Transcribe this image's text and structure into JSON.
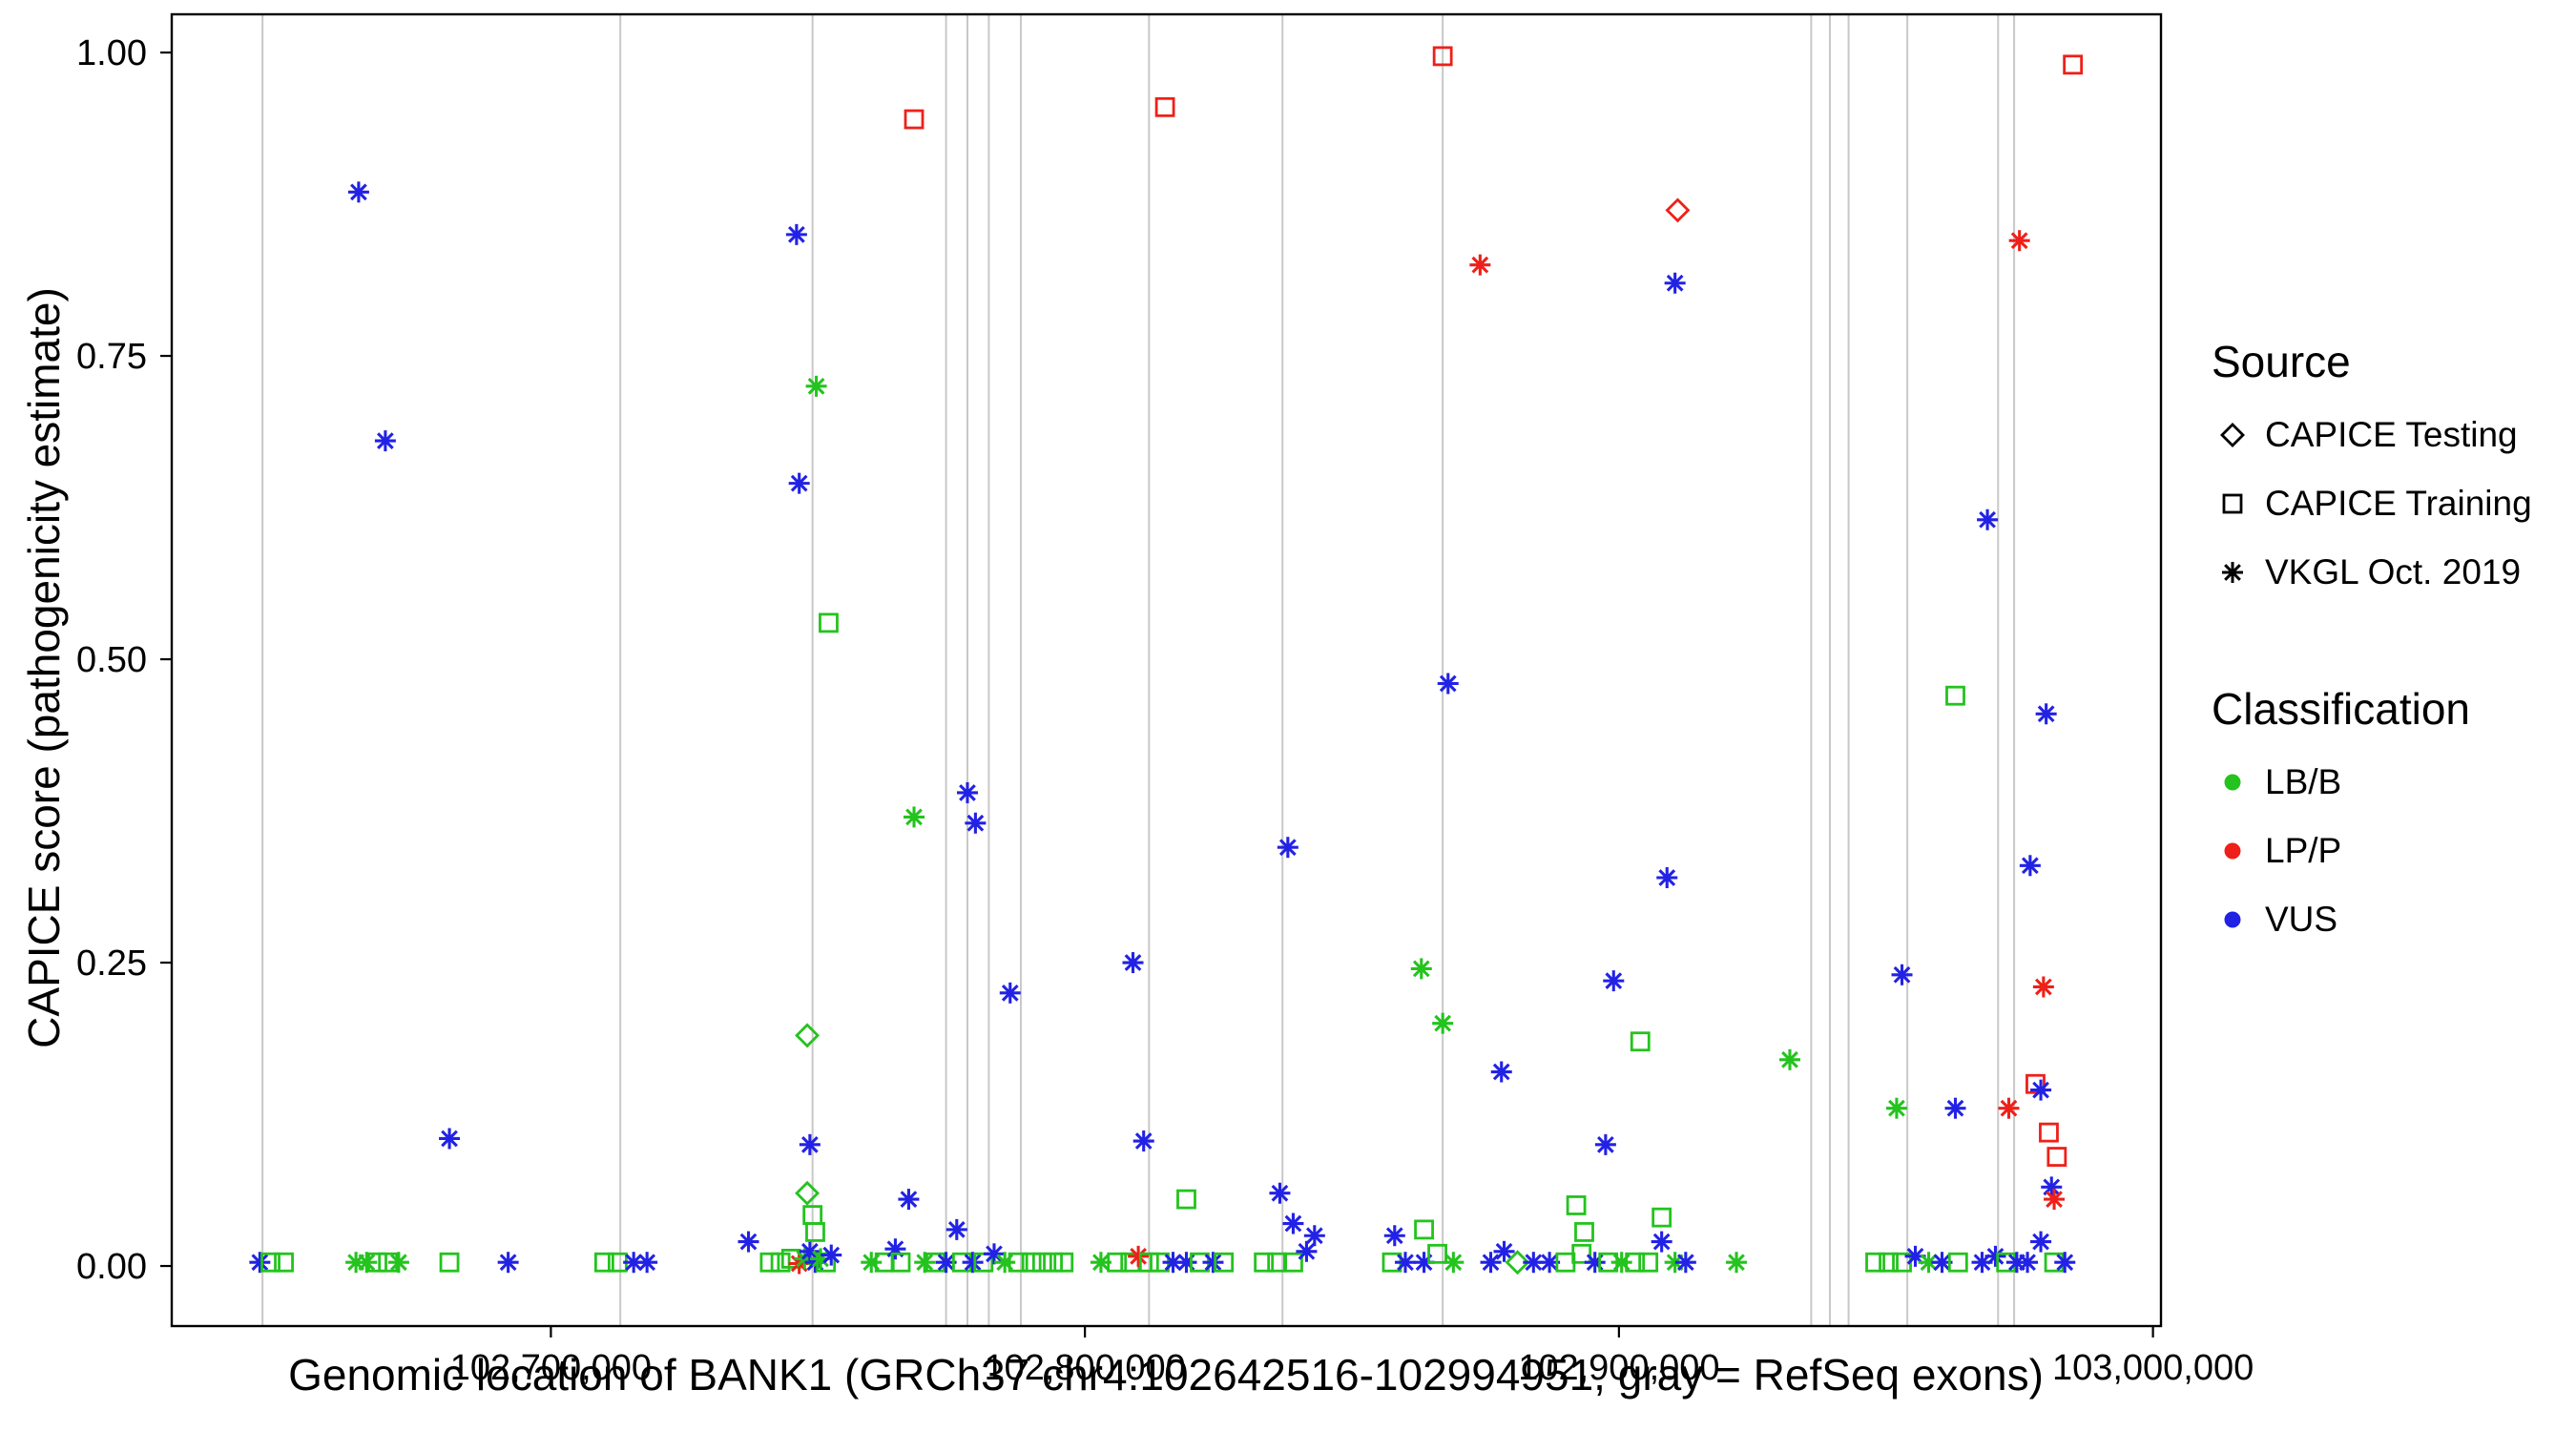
{
  "chart_data": {
    "type": "scatter",
    "title": "",
    "xlabel": "Genomic location of BANK1 (GRCh37 chr4:102642516-102994951, gray = RefSeq exons)",
    "ylabel": "CAPICE score (pathogenicity estimate)",
    "xlim": [
      102629000,
      103001500
    ],
    "ylim": [
      -0.0495,
      1.0315
    ],
    "grid": "off",
    "x_ticks": [
      {
        "v": 102700000,
        "label": "102,700,000"
      },
      {
        "v": 102800000,
        "label": "102,800,000"
      },
      {
        "v": 102900000,
        "label": "102,900,000"
      },
      {
        "v": 103000000,
        "label": "103,000,000"
      }
    ],
    "y_ticks": [
      {
        "v": 0.0,
        "label": "0.00"
      },
      {
        "v": 0.25,
        "label": "0.25"
      },
      {
        "v": 0.5,
        "label": "0.50"
      },
      {
        "v": 0.75,
        "label": "0.75"
      },
      {
        "v": 1.0,
        "label": "1.00"
      }
    ],
    "exon_line_color": "#c8c8c8",
    "exon_lines": [
      102646000,
      102713000,
      102749000,
      102774000,
      102778000,
      102782000,
      102788000,
      102812000,
      102837000,
      102867000,
      102936000,
      102939500,
      102943000,
      102954000,
      102971000,
      102974000
    ],
    "class_colors": {
      "LB/B": "#24c31e",
      "LP/P": "#ee2019",
      "VUS": "#2222e5"
    },
    "source_markers": {
      "testing": "diamond",
      "training": "square",
      "vkgl": "asterisk"
    },
    "points": [
      [
        102645500,
        0.003,
        "vkgl",
        "VUS"
      ],
      [
        102647500,
        0.003,
        "training",
        "LB/B"
      ],
      [
        102650000,
        0.003,
        "training",
        "LB/B"
      ],
      [
        102663500,
        0.003,
        "vkgl",
        "LB/B"
      ],
      [
        102664000,
        0.885,
        "vkgl",
        "VUS"
      ],
      [
        102665500,
        0.003,
        "vkgl",
        "LB/B"
      ],
      [
        102667500,
        0.003,
        "training",
        "LB/B"
      ],
      [
        102669000,
        0.68,
        "vkgl",
        "VUS"
      ],
      [
        102669500,
        0.003,
        "training",
        "LB/B"
      ],
      [
        102671500,
        0.003,
        "vkgl",
        "LB/B"
      ],
      [
        102681000,
        0.105,
        "vkgl",
        "VUS"
      ],
      [
        102681000,
        0.003,
        "training",
        "LB/B"
      ],
      [
        102692000,
        0.003,
        "vkgl",
        "VUS"
      ],
      [
        102710000,
        0.003,
        "training",
        "LB/B"
      ],
      [
        102712500,
        0.003,
        "training",
        "LB/B"
      ],
      [
        102715500,
        0.003,
        "vkgl",
        "VUS"
      ],
      [
        102718000,
        0.003,
        "vkgl",
        "VUS"
      ],
      [
        102737000,
        0.02,
        "vkgl",
        "VUS"
      ],
      [
        102741000,
        0.003,
        "training",
        "LB/B"
      ],
      [
        102743000,
        0.003,
        "training",
        "LB/B"
      ],
      [
        102745000,
        0.006,
        "training",
        "LB/B"
      ],
      [
        102746000,
        0.85,
        "vkgl",
        "VUS"
      ],
      [
        102746500,
        0.645,
        "vkgl",
        "VUS"
      ],
      [
        102746500,
        0.002,
        "vkgl",
        "LP/P"
      ],
      [
        102747500,
        0.006,
        "vkgl",
        "LB/B"
      ],
      [
        102748000,
        0.19,
        "testing",
        "LB/B"
      ],
      [
        102748000,
        0.06,
        "testing",
        "LB/B"
      ],
      [
        102748500,
        0.1,
        "vkgl",
        "VUS"
      ],
      [
        102748500,
        0.012,
        "vkgl",
        "VUS"
      ],
      [
        102749000,
        0.042,
        "training",
        "LB/B"
      ],
      [
        102749500,
        0.028,
        "training",
        "LB/B"
      ],
      [
        102749700,
        0.725,
        "vkgl",
        "LB/B"
      ],
      [
        102749500,
        0.003,
        "vkgl",
        "VUS"
      ],
      [
        102750500,
        0.006,
        "vkgl",
        "LB/B"
      ],
      [
        102751500,
        0.003,
        "training",
        "LB/B"
      ],
      [
        102752000,
        0.53,
        "training",
        "LB/B"
      ],
      [
        102752500,
        0.009,
        "vkgl",
        "VUS"
      ],
      [
        102760000,
        0.003,
        "vkgl",
        "LB/B"
      ],
      [
        102762500,
        0.003,
        "training",
        "LB/B"
      ],
      [
        102764500,
        0.014,
        "vkgl",
        "VUS"
      ],
      [
        102765500,
        0.003,
        "training",
        "LB/B"
      ],
      [
        102767000,
        0.055,
        "vkgl",
        "VUS"
      ],
      [
        102768000,
        0.945,
        "training",
        "LP/P"
      ],
      [
        102768000,
        0.37,
        "vkgl",
        "LB/B"
      ],
      [
        102770000,
        0.003,
        "vkgl",
        "LB/B"
      ],
      [
        102772000,
        0.003,
        "training",
        "LB/B"
      ],
      [
        102774000,
        0.003,
        "vkgl",
        "VUS"
      ],
      [
        102776000,
        0.03,
        "vkgl",
        "VUS"
      ],
      [
        102777000,
        0.003,
        "training",
        "LB/B"
      ],
      [
        102778000,
        0.39,
        "vkgl",
        "VUS"
      ],
      [
        102779000,
        0.003,
        "vkgl",
        "VUS"
      ],
      [
        102779500,
        0.365,
        "vkgl",
        "VUS"
      ],
      [
        102781000,
        0.003,
        "training",
        "LB/B"
      ],
      [
        102783000,
        0.01,
        "vkgl",
        "VUS"
      ],
      [
        102785000,
        0.003,
        "vkgl",
        "LB/B"
      ],
      [
        102786000,
        0.225,
        "vkgl",
        "VUS"
      ],
      [
        102787500,
        0.003,
        "training",
        "LB/B"
      ],
      [
        102790000,
        0.003,
        "training",
        "LB/B"
      ],
      [
        102792000,
        0.003,
        "training",
        "LB/B"
      ],
      [
        102794000,
        0.003,
        "training",
        "LB/B"
      ],
      [
        102796000,
        0.003,
        "training",
        "LB/B"
      ],
      [
        102803000,
        0.003,
        "vkgl",
        "LB/B"
      ],
      [
        102806000,
        0.003,
        "training",
        "LB/B"
      ],
      [
        102808500,
        0.003,
        "training",
        "LB/B"
      ],
      [
        102809000,
        0.25,
        "vkgl",
        "VUS"
      ],
      [
        102810000,
        0.008,
        "vkgl",
        "LP/P"
      ],
      [
        102811000,
        0.103,
        "vkgl",
        "VUS"
      ],
      [
        102812000,
        0.003,
        "training",
        "LB/B"
      ],
      [
        102814000,
        0.003,
        "training",
        "LB/B"
      ],
      [
        102815000,
        0.955,
        "training",
        "LP/P"
      ],
      [
        102816500,
        0.003,
        "vkgl",
        "VUS"
      ],
      [
        102819000,
        0.055,
        "training",
        "LB/B"
      ],
      [
        102819000,
        0.003,
        "vkgl",
        "VUS"
      ],
      [
        102821500,
        0.003,
        "training",
        "LB/B"
      ],
      [
        102824000,
        0.003,
        "vkgl",
        "VUS"
      ],
      [
        102826000,
        0.003,
        "training",
        "LB/B"
      ],
      [
        102833500,
        0.003,
        "training",
        "LB/B"
      ],
      [
        102836000,
        0.003,
        "training",
        "LB/B"
      ],
      [
        102836500,
        0.06,
        "vkgl",
        "VUS"
      ],
      [
        102838000,
        0.345,
        "vkgl",
        "VUS"
      ],
      [
        102839000,
        0.035,
        "vkgl",
        "VUS"
      ],
      [
        102839000,
        0.003,
        "training",
        "LB/B"
      ],
      [
        102841500,
        0.012,
        "vkgl",
        "VUS"
      ],
      [
        102843000,
        0.025,
        "vkgl",
        "VUS"
      ],
      [
        102857500,
        0.003,
        "training",
        "LB/B"
      ],
      [
        102858000,
        0.025,
        "vkgl",
        "VUS"
      ],
      [
        102860000,
        0.003,
        "vkgl",
        "VUS"
      ],
      [
        102863000,
        0.245,
        "vkgl",
        "LB/B"
      ],
      [
        102863500,
        0.03,
        "training",
        "LB/B"
      ],
      [
        102863500,
        0.003,
        "vkgl",
        "VUS"
      ],
      [
        102866000,
        0.01,
        "training",
        "LB/B"
      ],
      [
        102867000,
        0.997,
        "training",
        "LP/P"
      ],
      [
        102867000,
        0.2,
        "vkgl",
        "LB/B"
      ],
      [
        102868000,
        0.48,
        "vkgl",
        "VUS"
      ],
      [
        102869000,
        0.003,
        "vkgl",
        "LB/B"
      ],
      [
        102874000,
        0.825,
        "vkgl",
        "LP/P"
      ],
      [
        102876000,
        0.003,
        "vkgl",
        "VUS"
      ],
      [
        102878000,
        0.16,
        "vkgl",
        "VUS"
      ],
      [
        102878500,
        0.012,
        "vkgl",
        "VUS"
      ],
      [
        102881000,
        0.003,
        "testing",
        "LB/B"
      ],
      [
        102884000,
        0.003,
        "vkgl",
        "VUS"
      ],
      [
        102887000,
        0.003,
        "vkgl",
        "VUS"
      ],
      [
        102890000,
        0.003,
        "training",
        "LB/B"
      ],
      [
        102892000,
        0.05,
        "training",
        "LB/B"
      ],
      [
        102893000,
        0.01,
        "training",
        "LB/B"
      ],
      [
        102893500,
        0.028,
        "training",
        "LB/B"
      ],
      [
        102895500,
        0.003,
        "vkgl",
        "VUS"
      ],
      [
        102897500,
        0.1,
        "vkgl",
        "VUS"
      ],
      [
        102898000,
        0.003,
        "training",
        "LB/B"
      ],
      [
        102899000,
        0.235,
        "vkgl",
        "VUS"
      ],
      [
        102900500,
        0.003,
        "vkgl",
        "LB/B"
      ],
      [
        102903000,
        0.003,
        "training",
        "LB/B"
      ],
      [
        102904000,
        0.185,
        "training",
        "LB/B"
      ],
      [
        102905500,
        0.003,
        "training",
        "LB/B"
      ],
      [
        102908000,
        0.04,
        "training",
        "LB/B"
      ],
      [
        102908000,
        0.02,
        "vkgl",
        "VUS"
      ],
      [
        102909000,
        0.32,
        "vkgl",
        "VUS"
      ],
      [
        102910500,
        0.81,
        "vkgl",
        "VUS"
      ],
      [
        102910500,
        0.003,
        "vkgl",
        "LB/B"
      ],
      [
        102911000,
        0.87,
        "testing",
        "LP/P"
      ],
      [
        102912500,
        0.003,
        "vkgl",
        "VUS"
      ],
      [
        102922000,
        0.003,
        "vkgl",
        "LB/B"
      ],
      [
        102932000,
        0.17,
        "vkgl",
        "LB/B"
      ],
      [
        102948000,
        0.003,
        "training",
        "LB/B"
      ],
      [
        102950500,
        0.003,
        "training",
        "LB/B"
      ],
      [
        102952000,
        0.13,
        "vkgl",
        "LB/B"
      ],
      [
        102953000,
        0.24,
        "vkgl",
        "VUS"
      ],
      [
        102953000,
        0.003,
        "training",
        "LB/B"
      ],
      [
        102955500,
        0.008,
        "vkgl",
        "VUS"
      ],
      [
        102958000,
        0.003,
        "vkgl",
        "LB/B"
      ],
      [
        102960500,
        0.003,
        "vkgl",
        "VUS"
      ],
      [
        102963000,
        0.47,
        "training",
        "LB/B"
      ],
      [
        102963000,
        0.13,
        "vkgl",
        "VUS"
      ],
      [
        102963500,
        0.003,
        "training",
        "LB/B"
      ],
      [
        102968000,
        0.003,
        "vkgl",
        "VUS"
      ],
      [
        102969000,
        0.615,
        "vkgl",
        "VUS"
      ],
      [
        102970500,
        0.008,
        "vkgl",
        "VUS"
      ],
      [
        102972500,
        0.003,
        "training",
        "LB/B"
      ],
      [
        102973000,
        0.13,
        "vkgl",
        "LP/P"
      ],
      [
        102974500,
        0.003,
        "vkgl",
        "VUS"
      ],
      [
        102975000,
        0.845,
        "vkgl",
        "LP/P"
      ],
      [
        102976500,
        0.003,
        "vkgl",
        "VUS"
      ],
      [
        102977000,
        0.33,
        "vkgl",
        "VUS"
      ],
      [
        102978000,
        0.15,
        "training",
        "LP/P"
      ],
      [
        102979000,
        0.145,
        "vkgl",
        "VUS"
      ],
      [
        102979000,
        0.02,
        "vkgl",
        "VUS"
      ],
      [
        102979500,
        0.23,
        "vkgl",
        "LP/P"
      ],
      [
        102980000,
        0.455,
        "vkgl",
        "VUS"
      ],
      [
        102980500,
        0.11,
        "training",
        "LP/P"
      ],
      [
        102981000,
        0.065,
        "vkgl",
        "VUS"
      ],
      [
        102981500,
        0.055,
        "vkgl",
        "LP/P"
      ],
      [
        102981500,
        0.003,
        "training",
        "LB/B"
      ],
      [
        102982000,
        0.09,
        "training",
        "LP/P"
      ],
      [
        102983500,
        0.003,
        "vkgl",
        "VUS"
      ],
      [
        102985000,
        0.99,
        "training",
        "LP/P"
      ]
    ]
  },
  "legend": {
    "source_title": "Source",
    "source_items": [
      {
        "label": "CAPICE Testing",
        "marker": "diamond"
      },
      {
        "label": "CAPICE Training",
        "marker": "square"
      },
      {
        "label": "VKGL Oct. 2019",
        "marker": "asterisk"
      }
    ],
    "classification_title": "Classification",
    "classification_items": [
      {
        "label": "LB/B",
        "color": "#24c31e"
      },
      {
        "label": "LP/P",
        "color": "#ee2019"
      },
      {
        "label": "VUS",
        "color": "#2222e5"
      }
    ]
  }
}
